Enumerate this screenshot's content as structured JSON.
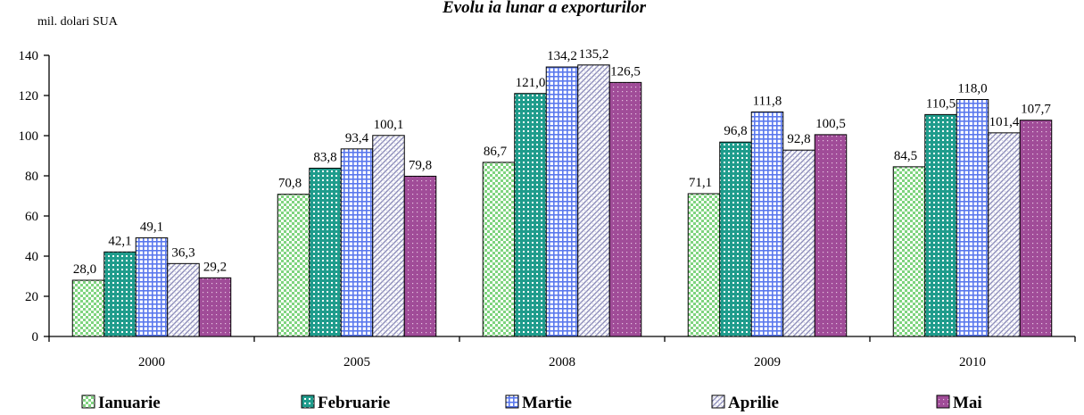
{
  "chart_data": {
    "type": "bar",
    "title": "Evolu ia lunar   a exporturilor",
    "ylabel": "mil. dolari SUA",
    "xlabel": "",
    "ylim": [
      0,
      140
    ],
    "yticks": [
      0,
      20,
      40,
      60,
      80,
      100,
      120,
      140
    ],
    "categories": [
      "2000",
      "2005",
      "2008",
      "2009",
      "2010"
    ],
    "series": [
      {
        "name": "Ianuarie",
        "values": [
          28.0,
          70.8,
          86.7,
          71.1,
          84.5
        ],
        "labels": [
          "28,0",
          "70,8",
          "86,7",
          "71,1",
          "84,5"
        ],
        "color": "#7fd47f",
        "pattern": "checker"
      },
      {
        "name": "Februarie",
        "values": [
          42.1,
          83.8,
          121.0,
          96.8,
          110.5
        ],
        "labels": [
          "42,1",
          "83,8",
          "121,0",
          "96,8",
          "110,5"
        ],
        "color": "#2ea99a",
        "pattern": "dots"
      },
      {
        "name": "Martie",
        "values": [
          49.1,
          93.4,
          134.2,
          111.8,
          118.0
        ],
        "labels": [
          "49,1",
          "93,4",
          "134,2",
          "111,8",
          "118,0"
        ],
        "color": "#6b86f0",
        "pattern": "grid"
      },
      {
        "name": "Aprilie",
        "values": [
          36.3,
          100.1,
          135.2,
          92.8,
          101.4
        ],
        "labels": [
          "36,3",
          "100,1",
          "135,2",
          "92,8",
          "101,4"
        ],
        "color": "#9e9ec8",
        "pattern": "diag"
      },
      {
        "name": "Mai",
        "values": [
          29.2,
          79.8,
          126.5,
          100.5,
          107.7
        ],
        "labels": [
          "29,2",
          "79,8",
          "126,5",
          "100,5",
          "107,7"
        ],
        "color": "#b05aa8",
        "pattern": "cross"
      }
    ],
    "legend_position": "bottom",
    "grid": false
  }
}
